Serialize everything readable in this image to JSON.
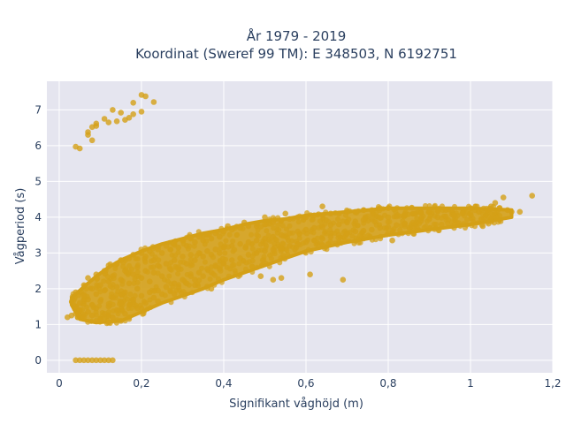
{
  "chart_data": {
    "type": "scatter",
    "title_line1": "År 1979 - 2019",
    "title_line2": "Koordinat (Sweref 99 TM): E 348503, N 6192751",
    "xlabel": "Signifikant våghöjd (m)",
    "ylabel": "Vågperiod (s)",
    "xlim": [
      -0.03,
      1.2
    ],
    "ylim": [
      -0.35,
      7.8
    ],
    "x_ticks": [
      {
        "value": 0,
        "label": "0"
      },
      {
        "value": 0.2,
        "label": "0,2"
      },
      {
        "value": 0.4,
        "label": "0,4"
      },
      {
        "value": 0.6,
        "label": "0,6"
      },
      {
        "value": 0.8,
        "label": "0,8"
      },
      {
        "value": 1.0,
        "label": "1"
      },
      {
        "value": 1.2,
        "label": "1,2"
      }
    ],
    "y_ticks": [
      {
        "value": 0,
        "label": "0"
      },
      {
        "value": 1,
        "label": "1"
      },
      {
        "value": 2,
        "label": "2"
      },
      {
        "value": 3,
        "label": "3"
      },
      {
        "value": 4,
        "label": "4"
      },
      {
        "value": 5,
        "label": "5"
      },
      {
        "value": 6,
        "label": "6"
      },
      {
        "value": 7,
        "label": "7"
      }
    ],
    "grid": true,
    "marker_color": "#d4a017",
    "plot_bg": "#e5e5ef",
    "series": [
      {
        "points": [
          [
            0.04,
            5.97
          ],
          [
            0.05,
            5.92
          ],
          [
            0.07,
            6.3
          ],
          [
            0.07,
            6.38
          ],
          [
            0.08,
            6.15
          ],
          [
            0.08,
            6.52
          ],
          [
            0.09,
            6.55
          ],
          [
            0.09,
            6.62
          ],
          [
            0.11,
            6.75
          ],
          [
            0.12,
            6.65
          ],
          [
            0.13,
            7.0
          ],
          [
            0.14,
            6.68
          ],
          [
            0.15,
            6.92
          ],
          [
            0.16,
            6.72
          ],
          [
            0.17,
            6.78
          ],
          [
            0.18,
            7.2
          ],
          [
            0.18,
            6.88
          ],
          [
            0.2,
            7.42
          ],
          [
            0.2,
            6.95
          ],
          [
            0.21,
            7.38
          ],
          [
            0.23,
            7.22
          ],
          [
            0.04,
            0.0
          ],
          [
            0.05,
            0.0
          ],
          [
            0.06,
            0.0
          ],
          [
            0.07,
            0.0
          ],
          [
            0.08,
            0.0
          ],
          [
            0.09,
            0.0
          ],
          [
            0.1,
            0.0
          ],
          [
            0.11,
            0.0
          ],
          [
            0.12,
            0.0
          ],
          [
            0.13,
            0.0
          ],
          [
            0.02,
            1.2
          ],
          [
            0.03,
            1.25
          ],
          [
            0.04,
            1.3
          ],
          [
            0.04,
            1.5
          ],
          [
            0.04,
            1.9
          ],
          [
            0.05,
            1.4
          ],
          [
            0.05,
            1.6
          ],
          [
            0.06,
            1.2
          ],
          [
            0.06,
            1.8
          ],
          [
            0.06,
            2.1
          ],
          [
            0.07,
            1.35
          ],
          [
            0.07,
            1.7
          ],
          [
            0.07,
            2.3
          ],
          [
            0.08,
            1.25
          ],
          [
            0.08,
            1.55
          ],
          [
            0.08,
            2.0
          ],
          [
            0.09,
            1.45
          ],
          [
            0.09,
            1.85
          ],
          [
            0.09,
            2.4
          ],
          [
            0.1,
            1.15
          ],
          [
            0.1,
            1.65
          ],
          [
            0.1,
            2.1
          ],
          [
            0.11,
            1.3
          ],
          [
            0.11,
            1.95
          ],
          [
            0.11,
            2.5
          ],
          [
            0.12,
            1.5
          ],
          [
            0.12,
            2.2
          ],
          [
            0.12,
            2.65
          ],
          [
            0.13,
            1.2
          ],
          [
            0.13,
            1.75
          ],
          [
            0.13,
            2.35
          ],
          [
            0.14,
            1.4
          ],
          [
            0.14,
            2.05
          ],
          [
            0.14,
            2.7
          ],
          [
            0.15,
            1.6
          ],
          [
            0.15,
            2.25
          ],
          [
            0.15,
            2.8
          ],
          [
            0.16,
            1.3
          ],
          [
            0.16,
            1.9
          ],
          [
            0.16,
            2.5
          ],
          [
            0.17,
            1.55
          ],
          [
            0.17,
            2.15
          ],
          [
            0.17,
            2.85
          ],
          [
            0.18,
            1.7
          ],
          [
            0.18,
            2.4
          ],
          [
            0.18,
            2.95
          ],
          [
            0.19,
            1.45
          ],
          [
            0.19,
            2.0
          ],
          [
            0.19,
            2.6
          ],
          [
            0.2,
            1.8
          ],
          [
            0.2,
            2.3
          ],
          [
            0.2,
            3.0
          ],
          [
            0.21,
            1.6
          ],
          [
            0.21,
            2.5
          ],
          [
            0.21,
            2.9
          ],
          [
            0.22,
            1.9
          ],
          [
            0.22,
            2.2
          ],
          [
            0.22,
            3.05
          ],
          [
            0.23,
            1.75
          ],
          [
            0.23,
            2.45
          ],
          [
            0.23,
            2.8
          ],
          [
            0.24,
            1.95
          ],
          [
            0.24,
            2.65
          ],
          [
            0.24,
            3.1
          ],
          [
            0.25,
            1.85
          ],
          [
            0.25,
            2.35
          ],
          [
            0.25,
            3.0
          ],
          [
            0.26,
            2.05
          ],
          [
            0.26,
            2.7
          ],
          [
            0.26,
            3.2
          ],
          [
            0.27,
            1.95
          ],
          [
            0.27,
            2.55
          ],
          [
            0.27,
            3.1
          ],
          [
            0.28,
            2.15
          ],
          [
            0.28,
            2.8
          ],
          [
            0.28,
            3.25
          ],
          [
            0.29,
            2.05
          ],
          [
            0.29,
            2.6
          ],
          [
            0.29,
            3.15
          ],
          [
            0.3,
            2.25
          ],
          [
            0.3,
            2.9
          ],
          [
            0.3,
            3.35
          ],
          [
            0.31,
            2.15
          ],
          [
            0.31,
            2.7
          ],
          [
            0.31,
            3.2
          ],
          [
            0.32,
            2.35
          ],
          [
            0.32,
            2.95
          ],
          [
            0.32,
            3.4
          ],
          [
            0.33,
            2.25
          ],
          [
            0.33,
            2.8
          ],
          [
            0.33,
            3.3
          ],
          [
            0.34,
            2.45
          ],
          [
            0.34,
            3.0
          ],
          [
            0.34,
            3.45
          ],
          [
            0.35,
            2.35
          ],
          [
            0.35,
            2.9
          ],
          [
            0.35,
            3.35
          ],
          [
            0.36,
            2.55
          ],
          [
            0.36,
            3.05
          ],
          [
            0.36,
            3.5
          ],
          [
            0.37,
            2.45
          ],
          [
            0.37,
            2.95
          ],
          [
            0.37,
            3.4
          ],
          [
            0.38,
            2.65
          ],
          [
            0.38,
            3.1
          ],
          [
            0.38,
            3.55
          ],
          [
            0.39,
            2.55
          ],
          [
            0.39,
            3.0
          ],
          [
            0.39,
            3.45
          ],
          [
            0.4,
            2.7
          ],
          [
            0.4,
            3.15
          ],
          [
            0.4,
            3.6
          ],
          [
            0.42,
            2.8
          ],
          [
            0.42,
            3.2
          ],
          [
            0.42,
            3.65
          ],
          [
            0.44,
            2.85
          ],
          [
            0.44,
            3.25
          ],
          [
            0.44,
            3.7
          ],
          [
            0.46,
            2.95
          ],
          [
            0.46,
            3.3
          ],
          [
            0.46,
            3.75
          ],
          [
            0.48,
            3.0
          ],
          [
            0.48,
            3.35
          ],
          [
            0.48,
            3.75
          ],
          [
            0.5,
            3.05
          ],
          [
            0.5,
            3.4
          ],
          [
            0.5,
            3.8
          ],
          [
            0.52,
            3.1
          ],
          [
            0.52,
            3.45
          ],
          [
            0.52,
            3.85
          ],
          [
            0.54,
            3.15
          ],
          [
            0.54,
            3.5
          ],
          [
            0.54,
            3.9
          ],
          [
            0.56,
            3.2
          ],
          [
            0.56,
            3.55
          ],
          [
            0.56,
            3.95
          ],
          [
            0.58,
            3.25
          ],
          [
            0.58,
            3.6
          ],
          [
            0.58,
            4.0
          ],
          [
            0.6,
            3.3
          ],
          [
            0.6,
            3.65
          ],
          [
            0.6,
            4.0
          ],
          [
            0.62,
            3.35
          ],
          [
            0.62,
            3.7
          ],
          [
            0.62,
            4.05
          ],
          [
            0.64,
            3.4
          ],
          [
            0.64,
            3.72
          ],
          [
            0.64,
            4.05
          ],
          [
            0.66,
            3.45
          ],
          [
            0.66,
            3.78
          ],
          [
            0.66,
            4.1
          ],
          [
            0.68,
            3.5
          ],
          [
            0.68,
            3.8
          ],
          [
            0.68,
            4.1
          ],
          [
            0.7,
            3.55
          ],
          [
            0.7,
            3.85
          ],
          [
            0.7,
            4.15
          ],
          [
            0.72,
            3.6
          ],
          [
            0.72,
            3.88
          ],
          [
            0.72,
            4.15
          ],
          [
            0.74,
            3.62
          ],
          [
            0.74,
            3.92
          ],
          [
            0.74,
            4.2
          ],
          [
            0.76,
            3.65
          ],
          [
            0.76,
            3.95
          ],
          [
            0.76,
            4.2
          ],
          [
            0.78,
            3.7
          ],
          [
            0.78,
            3.98
          ],
          [
            0.78,
            4.25
          ],
          [
            0.8,
            3.72
          ],
          [
            0.8,
            4.0
          ],
          [
            0.8,
            4.25
          ],
          [
            0.82,
            3.78
          ],
          [
            0.82,
            4.02
          ],
          [
            0.84,
            3.8
          ],
          [
            0.84,
            4.05
          ],
          [
            0.86,
            3.85
          ],
          [
            0.86,
            4.1
          ],
          [
            0.88,
            3.9
          ],
          [
            0.88,
            4.12
          ],
          [
            0.9,
            3.95
          ],
          [
            0.9,
            4.15
          ],
          [
            0.92,
            4.0
          ],
          [
            0.92,
            4.18
          ],
          [
            0.94,
            4.02
          ],
          [
            0.94,
            4.2
          ],
          [
            0.96,
            4.05
          ],
          [
            0.98,
            4.1
          ],
          [
            1.0,
            4.1
          ],
          [
            1.0,
            4.25
          ],
          [
            1.02,
            4.15
          ],
          [
            1.04,
            4.2
          ],
          [
            1.05,
            4.3
          ],
          [
            1.06,
            4.4
          ],
          [
            1.07,
            4.25
          ],
          [
            1.08,
            4.55
          ],
          [
            1.09,
            4.2
          ],
          [
            1.1,
            4.15
          ],
          [
            1.12,
            4.15
          ],
          [
            1.15,
            4.6
          ],
          [
            1.03,
            3.75
          ],
          [
            0.93,
            3.8
          ],
          [
            0.87,
            3.7
          ],
          [
            0.81,
            3.35
          ],
          [
            0.69,
            2.25
          ],
          [
            0.61,
            2.4
          ],
          [
            0.54,
            2.3
          ],
          [
            0.52,
            2.25
          ],
          [
            0.49,
            2.35
          ],
          [
            0.37,
            2.0
          ],
          [
            0.33,
            2.1
          ],
          [
            0.28,
            1.85
          ],
          [
            0.24,
            1.65
          ],
          [
            0.2,
            1.45
          ],
          [
            0.17,
            1.2
          ],
          [
            0.15,
            1.1
          ],
          [
            0.12,
            1.05
          ],
          [
            0.09,
            1.1
          ],
          [
            0.64,
            4.3
          ],
          [
            0.55,
            4.1
          ],
          [
            0.5,
            4.0
          ],
          [
            0.45,
            3.85
          ],
          [
            0.41,
            3.75
          ]
        ]
      }
    ]
  }
}
